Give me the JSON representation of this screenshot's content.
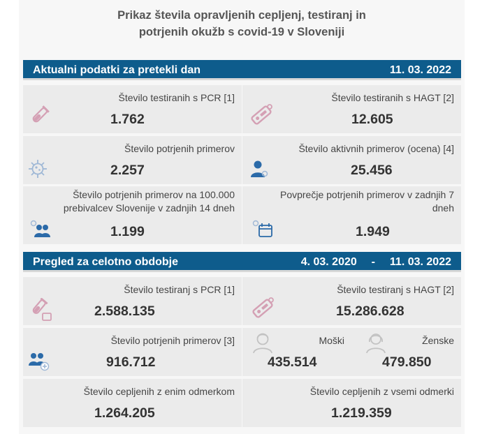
{
  "title": "Prikaz števila opravljenih cepljenj, testiranj in potrjenih okužb s covid-19 v Sloveniji",
  "title_line1": "Prikaz števila opravljenih cepljenj, testiranj in",
  "title_line2": "potrjenih okužb s covid-19 v Sloveniji",
  "colors": {
    "header_bar": "#0e5c8c",
    "card_bg": "#ebebeb",
    "icon_pink": "#d4a0b4",
    "icon_blue": "#2b6aa8"
  },
  "daily": {
    "heading": "Aktualni podatki za pretekli dan",
    "date": "11. 03. 2022",
    "cards": [
      {
        "label": "Število testiranih s PCR [1]",
        "value": "1.762",
        "icon": "test-tube-icon"
      },
      {
        "label": "Število testiranih s HAGT [2]",
        "value": "12.605",
        "icon": "rapid-test-icon"
      },
      {
        "label": "Število potrjenih primerov",
        "value": "2.257",
        "icon": "virus-icon"
      },
      {
        "label": "Število aktivnih primerov (ocena) [4]",
        "value": "25.456",
        "icon": "person-virus-icon"
      },
      {
        "label_line1": "Število potrjenih primerov na 100.000",
        "label_line2": "prebivalcev Slovenije v zadnjih 14 dneh",
        "value": "1.199",
        "icon": "people-virus-icon"
      },
      {
        "label_line1": "Povprečje potrjenih primerov v zadnjih 7",
        "label_line2": "dneh",
        "value": "1.949",
        "icon": "calendar-virus-icon"
      }
    ]
  },
  "period": {
    "heading": "Pregled za celotno obdobje",
    "date_from": "4. 03. 2020",
    "dash": "-",
    "date_to": "11. 03. 2022",
    "cards": [
      {
        "label": "Število testiranj s PCR [1]",
        "value": "2.588.135",
        "icon": "test-tube-icon"
      },
      {
        "label": "Število testiranj s HAGT [2]",
        "value": "15.286.628",
        "icon": "rapid-test-icon"
      },
      {
        "label": "Število potrjenih primerov [3]",
        "value": "916.712",
        "icon": "people-plus-icon"
      },
      {
        "men_label": "Moški",
        "men_value": "435.514",
        "women_label": "Ženske",
        "women_value": "479.850"
      },
      {
        "label": "Število cepljenih z enim odmerkom",
        "value": "1.264.205"
      },
      {
        "label": "Število cepljenih z vsemi odmerki",
        "value": "1.219.359"
      }
    ]
  }
}
